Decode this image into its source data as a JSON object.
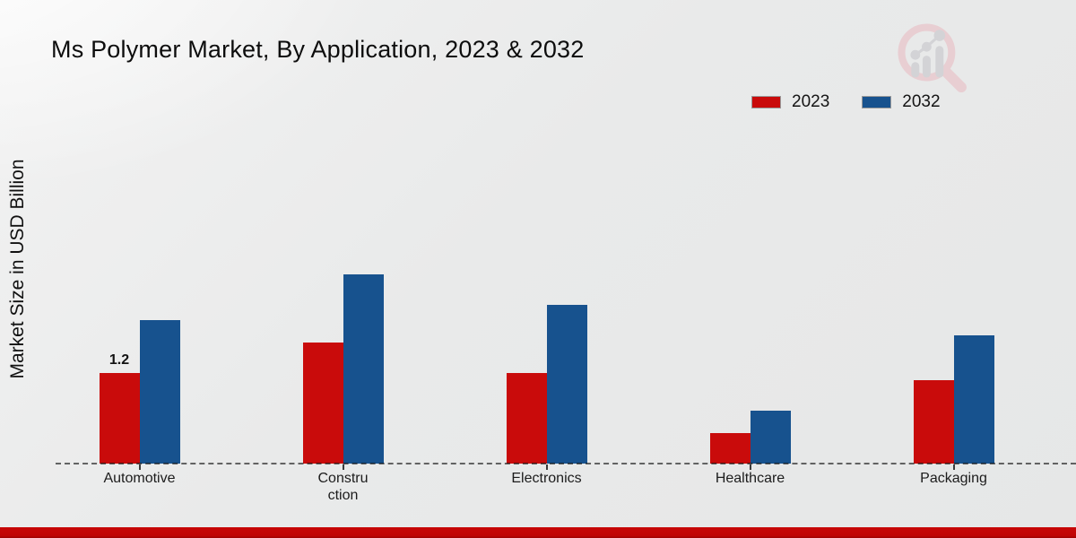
{
  "title": "Ms Polymer Market, By Application, 2023 & 2032",
  "ylabel": "Market Size in USD Billion",
  "legend": {
    "items": [
      {
        "label": "2023",
        "color": "#c90b0b"
      },
      {
        "label": "2032",
        "color": "#17528e"
      }
    ]
  },
  "footer": {
    "accent_color": "#c10606"
  },
  "watermark_icon": "magnifier-bar-chart-logo",
  "chart_data": {
    "type": "bar",
    "title": "Ms Polymer Market, By Application, 2023 & 2032",
    "ylabel": "Market Size in USD Billion",
    "units": "USD Billion",
    "categories": [
      "Automotive",
      "Construction",
      "Electronics",
      "Healthcare",
      "Packaging"
    ],
    "xtick_display": [
      [
        "Automotive"
      ],
      [
        "Constru",
        "ction"
      ],
      [
        "Electronics"
      ],
      [
        "Healthcare"
      ],
      [
        "Packaging"
      ]
    ],
    "series": [
      {
        "name": "2023",
        "color": "#c90b0b",
        "values": [
          1.2,
          1.6,
          1.2,
          0.4,
          1.1
        ]
      },
      {
        "name": "2032",
        "color": "#17528e",
        "values": [
          1.9,
          2.5,
          2.1,
          0.7,
          1.7
        ]
      }
    ],
    "bar_labels": [
      {
        "category": "Automotive",
        "series": "2023",
        "text": "1.2"
      }
    ],
    "ylim": [
      0,
      3
    ],
    "grid": false,
    "legend_position": "top-right",
    "baseline_style": "dashed"
  }
}
